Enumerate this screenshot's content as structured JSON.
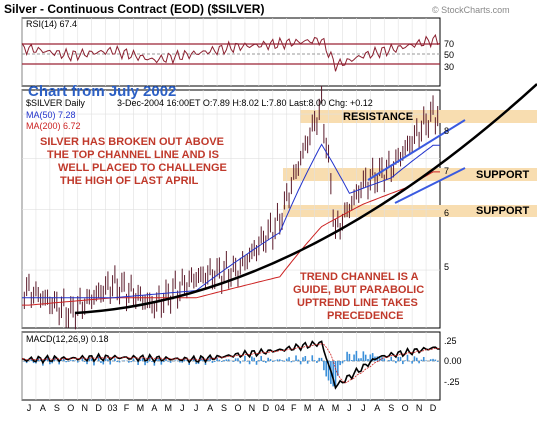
{
  "header": {
    "title": "Silver - Continuous Contract (EOD) ($SILVER)",
    "watermark": "© StockCharts.com"
  },
  "rsi_panel": {
    "label": "RSI(14) 67.4",
    "levels": [
      "70",
      "50",
      "30"
    ]
  },
  "price_panel": {
    "symbol_label": "$SILVER Daily",
    "ohlc": "3-Dec-2004 16:00ET O:7.89 H:8.02 L:7.80 Last:8.00 Chg: +0.12",
    "ma50_label": "MA(50) 7.28",
    "ma200_label": "MA(200) 6.72",
    "big_label": "Chart from July 2002",
    "annotation_left": [
      "SILVER HAS BROKEN OUT ABOVE",
      "THE TOP CHANNEL LINE AND IS",
      "WELL PLACED TO CHALLENGE",
      "THE HIGH OF LAST APRIL"
    ],
    "annotation_bottom": [
      "TREND CHANNEL IS A",
      "GUIDE, BUT PARABOLIC",
      "UPTREND LINE TAKES",
      "PRECEDENCE"
    ],
    "resistance_label": "RESISTANCE",
    "support_label_1": "SUPPORT",
    "support_label_2": "SUPPORT",
    "y_ticks": [
      "8",
      "7",
      "6",
      "5"
    ]
  },
  "macd_panel": {
    "label": "MACD(12,26,9) 0.18",
    "y_ticks": [
      ".25",
      "0.00",
      "-.25"
    ]
  },
  "x_axis": {
    "labels": [
      "J",
      "A",
      "S",
      "O",
      "N",
      "D",
      "03",
      "F",
      "M",
      "A",
      "M",
      "J",
      "J",
      "A",
      "S",
      "O",
      "N",
      "D",
      "04",
      "F",
      "M",
      "A",
      "M",
      "J",
      "J",
      "A",
      "S",
      "O",
      "N",
      "D"
    ]
  },
  "colors": {
    "rsi_line": "#8b2030",
    "rsi_band": "#9b2335",
    "ma50": "#2233cc",
    "ma200": "#cc2222",
    "price_bar": "#5a1a2a",
    "zone": "#f8ddb0",
    "channel": "#3a5ae0",
    "parabola": "#000000",
    "macd_hist": "#3a8fd9",
    "annotation": "#c0392b"
  },
  "chart_data": [
    {
      "type": "line",
      "title": "RSI(14)",
      "series": [
        {
          "name": "RSI(14)",
          "x": [
            "2002-07",
            "2002-10",
            "2003-01",
            "2003-04",
            "2003-07",
            "2003-10",
            "2004-01",
            "2004-04",
            "2004-05",
            "2004-07",
            "2004-10",
            "2004-12"
          ],
          "values": [
            55,
            45,
            52,
            38,
            48,
            58,
            62,
            68,
            30,
            45,
            58,
            67.4
          ]
        }
      ],
      "ylim": [
        0,
        100
      ]
    },
    {
      "type": "line",
      "title": "$SILVER Daily",
      "ylabel": "",
      "series": [
        {
          "name": "Price",
          "x": [
            "2002-07",
            "2002-10",
            "2003-01",
            "2003-04",
            "2003-07",
            "2003-10",
            "2004-01",
            "2004-02",
            "2004-04",
            "2004-05",
            "2004-07",
            "2004-09",
            "2004-12"
          ],
          "values": [
            4.7,
            4.4,
            4.8,
            4.5,
            4.9,
            5.0,
            5.8,
            6.6,
            8.2,
            5.6,
            6.5,
            6.8,
            8.0
          ]
        },
        {
          "name": "MA(50)",
          "x": [
            "2002-07",
            "2003-01",
            "2003-07",
            "2004-01",
            "2004-04",
            "2004-06",
            "2004-09",
            "2004-12"
          ],
          "values": [
            4.6,
            4.6,
            4.7,
            5.6,
            7.3,
            6.3,
            6.6,
            7.28
          ]
        },
        {
          "name": "MA(200)",
          "x": [
            "2002-07",
            "2003-01",
            "2003-07",
            "2004-01",
            "2004-04",
            "2004-07",
            "2004-10",
            "2004-12"
          ],
          "values": [
            4.5,
            4.6,
            4.6,
            4.9,
            5.7,
            6.1,
            6.4,
            6.72
          ]
        }
      ],
      "ylim": [
        4.2,
        8.6
      ],
      "annotations": {
        "resistance": 8.1,
        "support": [
          7.1,
          6.1
        ]
      }
    },
    {
      "type": "line",
      "title": "MACD(12,26,9)",
      "series": [
        {
          "name": "MACD",
          "x": [
            "2002-07",
            "2003-01",
            "2003-07",
            "2004-01",
            "2004-04",
            "2004-05",
            "2004-08",
            "2004-12"
          ],
          "values": [
            0.02,
            0.05,
            0.02,
            0.15,
            0.25,
            -0.35,
            0.05,
            0.18
          ]
        }
      ],
      "ylim": [
        -0.4,
        0.4
      ]
    }
  ]
}
